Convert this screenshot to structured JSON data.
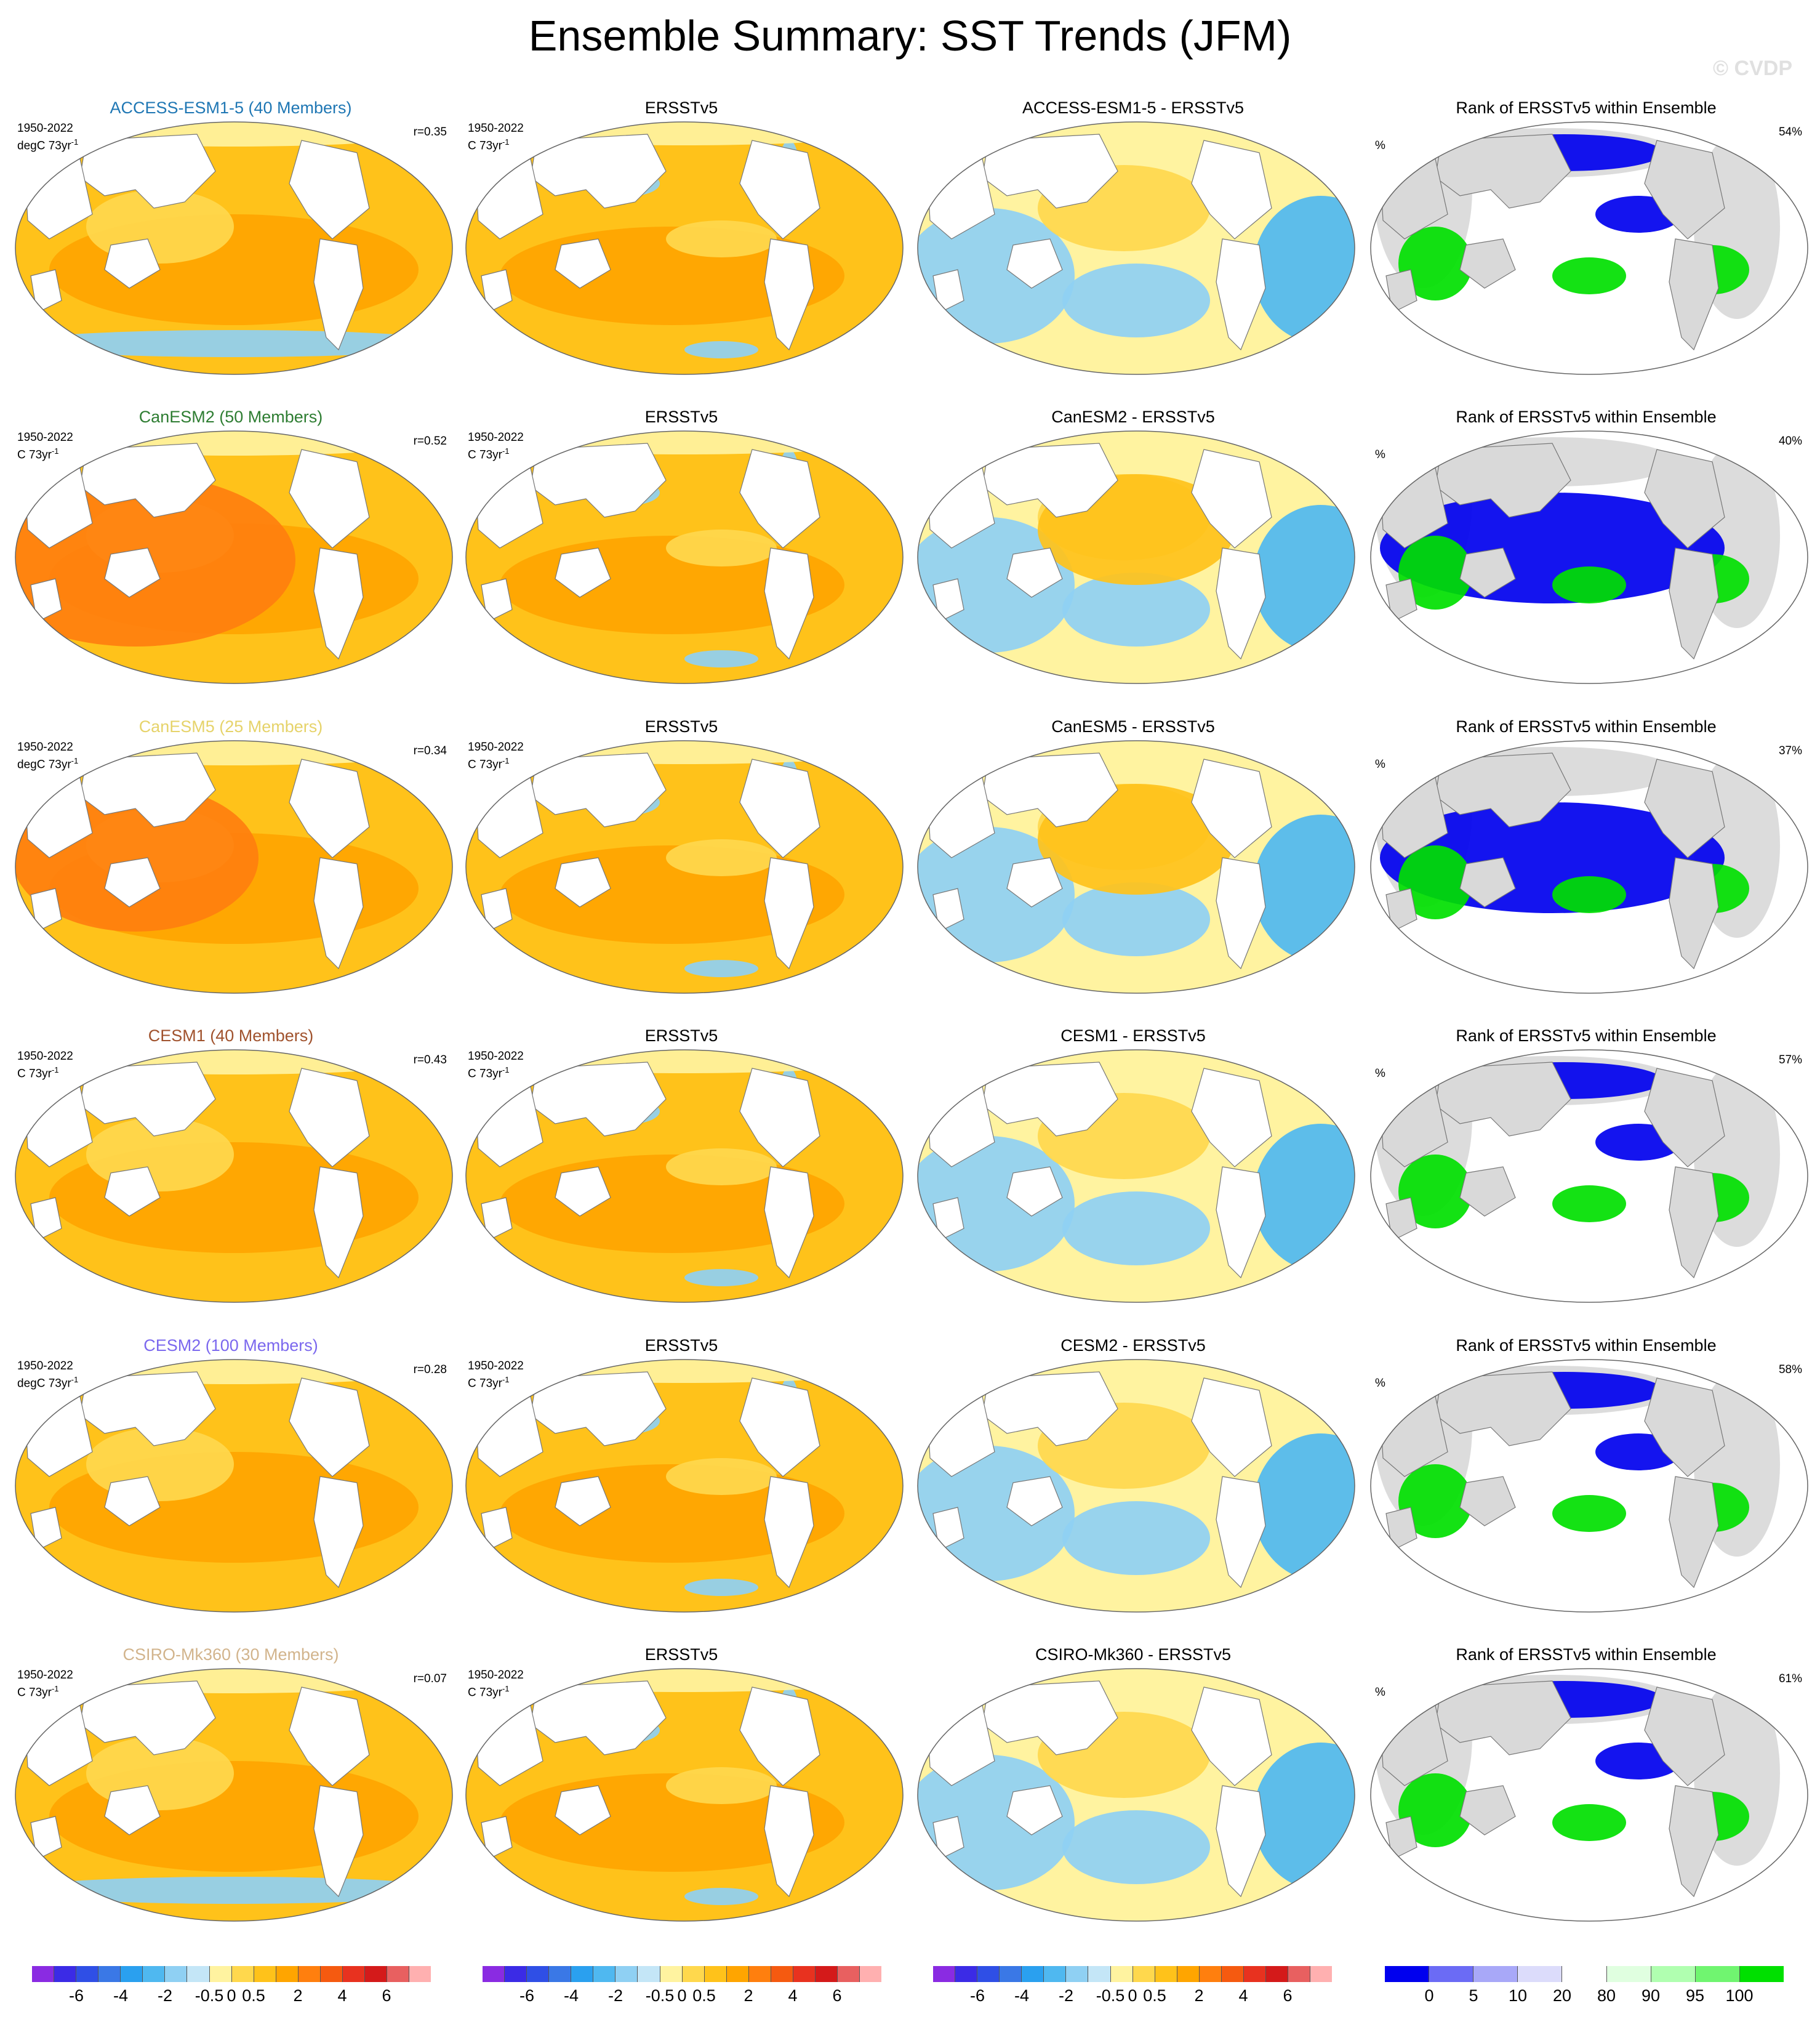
{
  "title": "Ensemble Summary: SST Trends (JFM)",
  "watermark": "© CVDP",
  "model_colors": {
    "ACCESS-ESM1-5": "#1f77b4",
    "CanESM2": "#2e7d32",
    "CanESM5": "#e6d36a",
    "CESM1": "#a0522d",
    "CESM2": "#7b68ee",
    "CSIRO-Mk360": "#d2b48c"
  },
  "rows": [
    {
      "model_title": "ACCESS-ESM1-5 (40 Members)",
      "model_meta1": "1950-2022",
      "model_meta2": "degC 73yr",
      "corr": "r=0.35",
      "obs_title": "ERSSTv5",
      "obs_meta1": "1950-2022",
      "obs_meta2": "C 73yr",
      "diff_title": "ACCESS-ESM1-5 - ERSSTv5",
      "rank_title": "Rank of ERSSTv5 within Ensemble",
      "rank_pct_label": "%",
      "rank_value": "54%"
    },
    {
      "model_title": "CanESM2 (50 Members)",
      "model_meta1": "1950-2022",
      "model_meta2": "C 73yr",
      "corr": "r=0.52",
      "obs_title": "ERSSTv5",
      "obs_meta1": "1950-2022",
      "obs_meta2": "C 73yr",
      "diff_title": "CanESM2 - ERSSTv5",
      "rank_title": "Rank of ERSSTv5 within Ensemble",
      "rank_pct_label": "%",
      "rank_value": "40%"
    },
    {
      "model_title": "CanESM5 (25 Members)",
      "model_meta1": "1950-2022",
      "model_meta2": "degC 73yr",
      "corr": "r=0.34",
      "obs_title": "ERSSTv5",
      "obs_meta1": "1950-2022",
      "obs_meta2": "C 73yr",
      "diff_title": "CanESM5 - ERSSTv5",
      "rank_title": "Rank of ERSSTv5 within Ensemble",
      "rank_pct_label": "%",
      "rank_value": "37%"
    },
    {
      "model_title": "CESM1 (40 Members)",
      "model_meta1": "1950-2022",
      "model_meta2": "C 73yr",
      "corr": "r=0.43",
      "obs_title": "ERSSTv5",
      "obs_meta1": "1950-2022",
      "obs_meta2": "C 73yr",
      "diff_title": "CESM1 - ERSSTv5",
      "rank_title": "Rank of ERSSTv5 within Ensemble",
      "rank_pct_label": "%",
      "rank_value": "57%"
    },
    {
      "model_title": "CESM2 (100 Members)",
      "model_meta1": "1950-2022",
      "model_meta2": "degC 73yr",
      "corr": "r=0.28",
      "obs_title": "ERSSTv5",
      "obs_meta1": "1950-2022",
      "obs_meta2": "C 73yr",
      "diff_title": "CESM2 - ERSSTv5",
      "rank_title": "Rank of ERSSTv5 within Ensemble",
      "rank_pct_label": "%",
      "rank_value": "58%"
    },
    {
      "model_title": "CSIRO-Mk360 (30 Members)",
      "model_meta1": "1950-2022",
      "model_meta2": "C 73yr",
      "corr": "r=0.07",
      "obs_title": "ERSSTv5",
      "obs_meta1": "1950-2022",
      "obs_meta2": "C 73yr",
      "diff_title": "CSIRO-Mk360 - ERSSTv5",
      "rank_title": "Rank of ERSSTv5 within Ensemble",
      "rank_pct_label": "%",
      "rank_value": "61%"
    }
  ],
  "unit_exponent": "-1",
  "trend_colorbar": {
    "colors": [
      "#8a2be2",
      "#3b2be6",
      "#2f4fe6",
      "#3a78e6",
      "#2aa0ef",
      "#4fb8f0",
      "#8fd0f3",
      "#c4e6f7",
      "#fff3a0",
      "#ffd84d",
      "#ffc21a",
      "#ffa500",
      "#ff7f0e",
      "#f55a10",
      "#e8321f",
      "#d41a1a",
      "#e86060",
      "#ffb0b0"
    ],
    "ticks": [
      "-6",
      "-4",
      "-2",
      "-0.5",
      "0",
      "0.5",
      "2",
      "4",
      "6"
    ]
  },
  "rank_colorbar": {
    "colors": [
      "#0000ee",
      "#6b6bf5",
      "#a8a8f8",
      "#dcdcfb",
      "#ffffff",
      "#e0ffe0",
      "#b0ffb0",
      "#70f570",
      "#00e000"
    ],
    "ticks": [
      "0",
      "5",
      "10",
      "20",
      "80",
      "90",
      "95",
      "100"
    ]
  }
}
